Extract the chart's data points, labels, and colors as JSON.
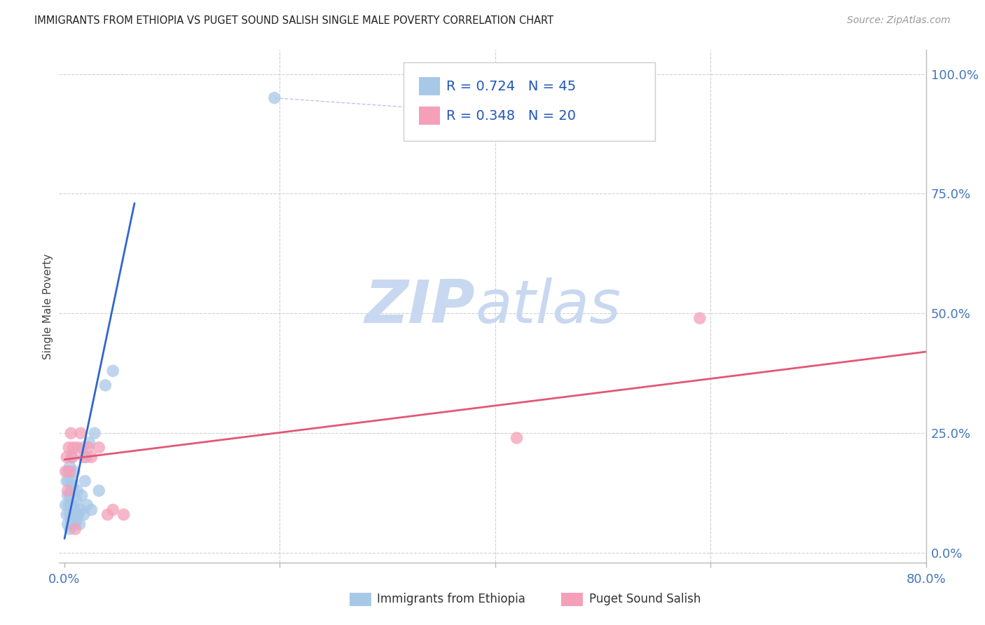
{
  "title": "IMMIGRANTS FROM ETHIOPIA VS PUGET SOUND SALISH SINGLE MALE POVERTY CORRELATION CHART",
  "source": "Source: ZipAtlas.com",
  "ylabel": "Single Male Poverty",
  "y_tick_labels": [
    "0.0%",
    "25.0%",
    "50.0%",
    "75.0%",
    "100.0%"
  ],
  "y_tick_values": [
    0.0,
    0.25,
    0.5,
    0.75,
    1.0
  ],
  "x_tick_values": [
    0.0,
    0.2,
    0.4,
    0.6,
    0.8
  ],
  "x_tick_labels": [
    "0.0%",
    "",
    "",
    "",
    "80.0%"
  ],
  "xlim": [
    -0.005,
    0.8
  ],
  "ylim": [
    -0.02,
    1.05
  ],
  "blue_color": "#a8c8e8",
  "blue_line_color": "#3366cc",
  "pink_color": "#f4a0b8",
  "pink_line_color": "#e05878",
  "blue_scatter_x": [
    0.001,
    0.002,
    0.002,
    0.003,
    0.003,
    0.003,
    0.004,
    0.004,
    0.005,
    0.005,
    0.005,
    0.005,
    0.006,
    0.006,
    0.006,
    0.006,
    0.007,
    0.007,
    0.007,
    0.008,
    0.008,
    0.008,
    0.009,
    0.009,
    0.01,
    0.01,
    0.011,
    0.011,
    0.012,
    0.013,
    0.014,
    0.015,
    0.016,
    0.017,
    0.018,
    0.019,
    0.02,
    0.021,
    0.023,
    0.025,
    0.028,
    0.032,
    0.038,
    0.045,
    0.195
  ],
  "blue_scatter_y": [
    0.1,
    0.15,
    0.08,
    0.12,
    0.06,
    0.17,
    0.1,
    0.15,
    0.05,
    0.08,
    0.12,
    0.18,
    0.07,
    0.1,
    0.13,
    0.06,
    0.08,
    0.15,
    0.2,
    0.06,
    0.1,
    0.14,
    0.08,
    0.17,
    0.06,
    0.09,
    0.11,
    0.07,
    0.13,
    0.08,
    0.06,
    0.09,
    0.12,
    0.22,
    0.08,
    0.15,
    0.2,
    0.1,
    0.23,
    0.09,
    0.25,
    0.13,
    0.35,
    0.38,
    0.95
  ],
  "pink_scatter_x": [
    0.001,
    0.002,
    0.003,
    0.004,
    0.005,
    0.006,
    0.007,
    0.008,
    0.01,
    0.012,
    0.015,
    0.018,
    0.022,
    0.025,
    0.032,
    0.04,
    0.045,
    0.055,
    0.42,
    0.59
  ],
  "pink_scatter_y": [
    0.17,
    0.2,
    0.13,
    0.22,
    0.17,
    0.25,
    0.2,
    0.22,
    0.05,
    0.22,
    0.25,
    0.2,
    0.22,
    0.2,
    0.22,
    0.08,
    0.09,
    0.08,
    0.24,
    0.49
  ],
  "blue_line_x": [
    0.0,
    0.065
  ],
  "blue_line_y": [
    0.03,
    0.73
  ],
  "pink_line_x": [
    0.0,
    0.8
  ],
  "pink_line_y": [
    0.195,
    0.42
  ],
  "dashed_line_x": [
    0.195,
    0.385
  ],
  "dashed_line_y": [
    0.95,
    0.92
  ],
  "watermark1": "ZIP",
  "watermark2": "atlas",
  "watermark_color": "#c8d8f0",
  "background_color": "#ffffff",
  "grid_color": "#d0d0d0",
  "legend_R1": "R = 0.724",
  "legend_N1": "N = 45",
  "legend_R2": "R = 0.348",
  "legend_N2": "N = 20",
  "legend_label1": "Immigrants from Ethiopia",
  "legend_label2": "Puget Sound Salish"
}
